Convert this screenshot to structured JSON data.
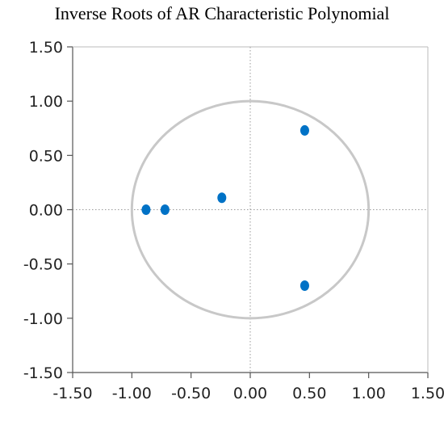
{
  "chart_data": {
    "type": "scatter",
    "title": "Inverse Roots of AR Characteristic Polynomial",
    "xlabel": "",
    "ylabel": "",
    "xlim": [
      -1.5,
      1.5
    ],
    "ylim": [
      -1.5,
      1.5
    ],
    "xticks": [
      -1.5,
      -1.0,
      -0.5,
      0.0,
      0.5,
      1.0,
      1.5
    ],
    "yticks": [
      -1.5,
      -1.0,
      -0.5,
      0.0,
      0.5,
      1.0,
      1.5
    ],
    "xtick_labels": [
      "-1.50",
      "-1.00",
      "-0.50",
      "0.00",
      "0.50",
      "1.00",
      "1.50"
    ],
    "ytick_labels": [
      "-1.50",
      "-1.00",
      "-0.50",
      "0.00",
      "0.50",
      "1.00",
      "1.50"
    ],
    "grid": false,
    "zero_lines": true,
    "unit_circle": {
      "radius": 1.0,
      "color": "#c8c8c8"
    },
    "marker_color": "#0072c6",
    "points": [
      {
        "x": -0.88,
        "y": 0.0
      },
      {
        "x": -0.72,
        "y": 0.0
      },
      {
        "x": -0.24,
        "y": 0.11
      },
      {
        "x": 0.46,
        "y": 0.73
      },
      {
        "x": 0.46,
        "y": -0.7
      }
    ]
  }
}
